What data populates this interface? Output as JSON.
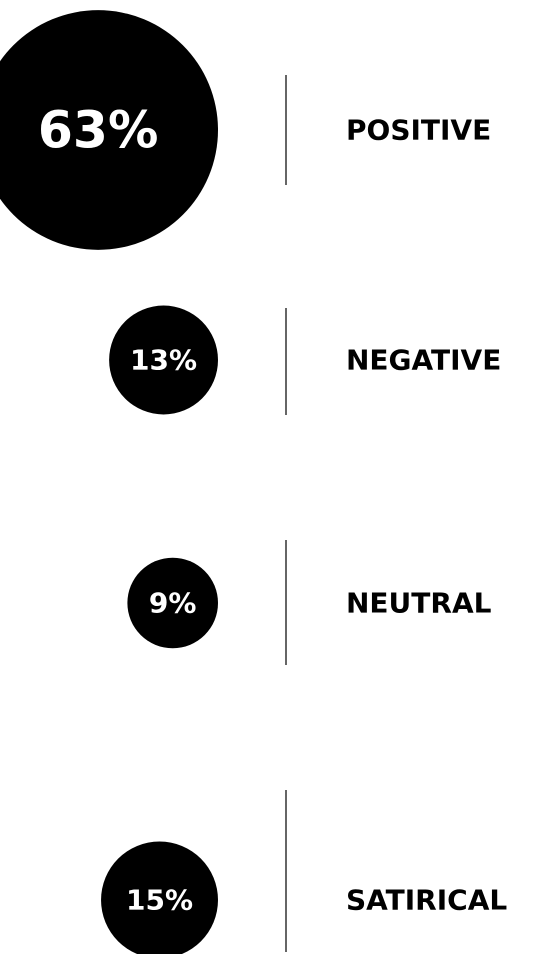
{
  "chart_data": {
    "type": "bubble",
    "categories": [
      "POSITIVE",
      "NEGATIVE",
      "NEUTRAL",
      "SATIRICAL"
    ],
    "values": [
      63,
      13,
      9,
      15
    ],
    "value_labels": [
      "63%",
      "13%",
      "9%",
      "15%"
    ],
    "color": "#000000"
  }
}
